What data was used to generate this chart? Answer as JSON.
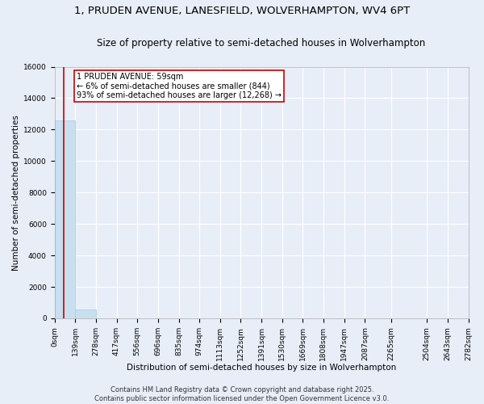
{
  "title": "1, PRUDEN AVENUE, LANESFIELD, WOLVERHAMPTON, WV4 6PT",
  "subtitle": "Size of property relative to semi-detached houses in Wolverhampton",
  "xlabel": "Distribution of semi-detached houses by size in Wolverhampton",
  "ylabel": "Number of semi-detached properties",
  "bar_color": "#c8dff0",
  "bar_edge_color": "#a8c8e8",
  "background_color": "#e8eef8",
  "grid_color": "#ffffff",
  "annotation_text": "1 PRUDEN AVENUE: 59sqm\n← 6% of semi-detached houses are smaller (844)\n93% of semi-detached houses are larger (12,268) →",
  "annotation_box_color": "#ffffff",
  "annotation_border_color": "#cc0000",
  "vline_color": "#cc0000",
  "property_size": 59,
  "bin_edges": [
    0,
    139,
    278,
    417,
    556,
    696,
    835,
    974,
    1113,
    1252,
    1391,
    1530,
    1669,
    1808,
    1947,
    2087,
    2265,
    2504,
    2643,
    2782
  ],
  "bin_labels": [
    "0sqm",
    "139sqm",
    "278sqm",
    "417sqm",
    "556sqm",
    "696sqm",
    "835sqm",
    "974sqm",
    "1113sqm",
    "1252sqm",
    "1391sqm",
    "1530sqm",
    "1669sqm",
    "1808sqm",
    "1947sqm",
    "2087sqm",
    "2265sqm",
    "2504sqm",
    "2643sqm",
    "2782sqm"
  ],
  "bar_heights": [
    12600,
    550,
    0,
    0,
    0,
    0,
    0,
    0,
    0,
    0,
    0,
    0,
    0,
    0,
    0,
    0,
    0,
    0,
    0
  ],
  "ylim": [
    0,
    16000
  ],
  "yticks": [
    0,
    2000,
    4000,
    6000,
    8000,
    10000,
    12000,
    14000,
    16000
  ],
  "footer_text": "Contains HM Land Registry data © Crown copyright and database right 2025.\nContains public sector information licensed under the Open Government Licence v3.0.",
  "title_fontsize": 9.5,
  "subtitle_fontsize": 8.5,
  "axis_label_fontsize": 7.5,
  "tick_fontsize": 6.5,
  "annotation_fontsize": 7,
  "footer_fontsize": 6
}
